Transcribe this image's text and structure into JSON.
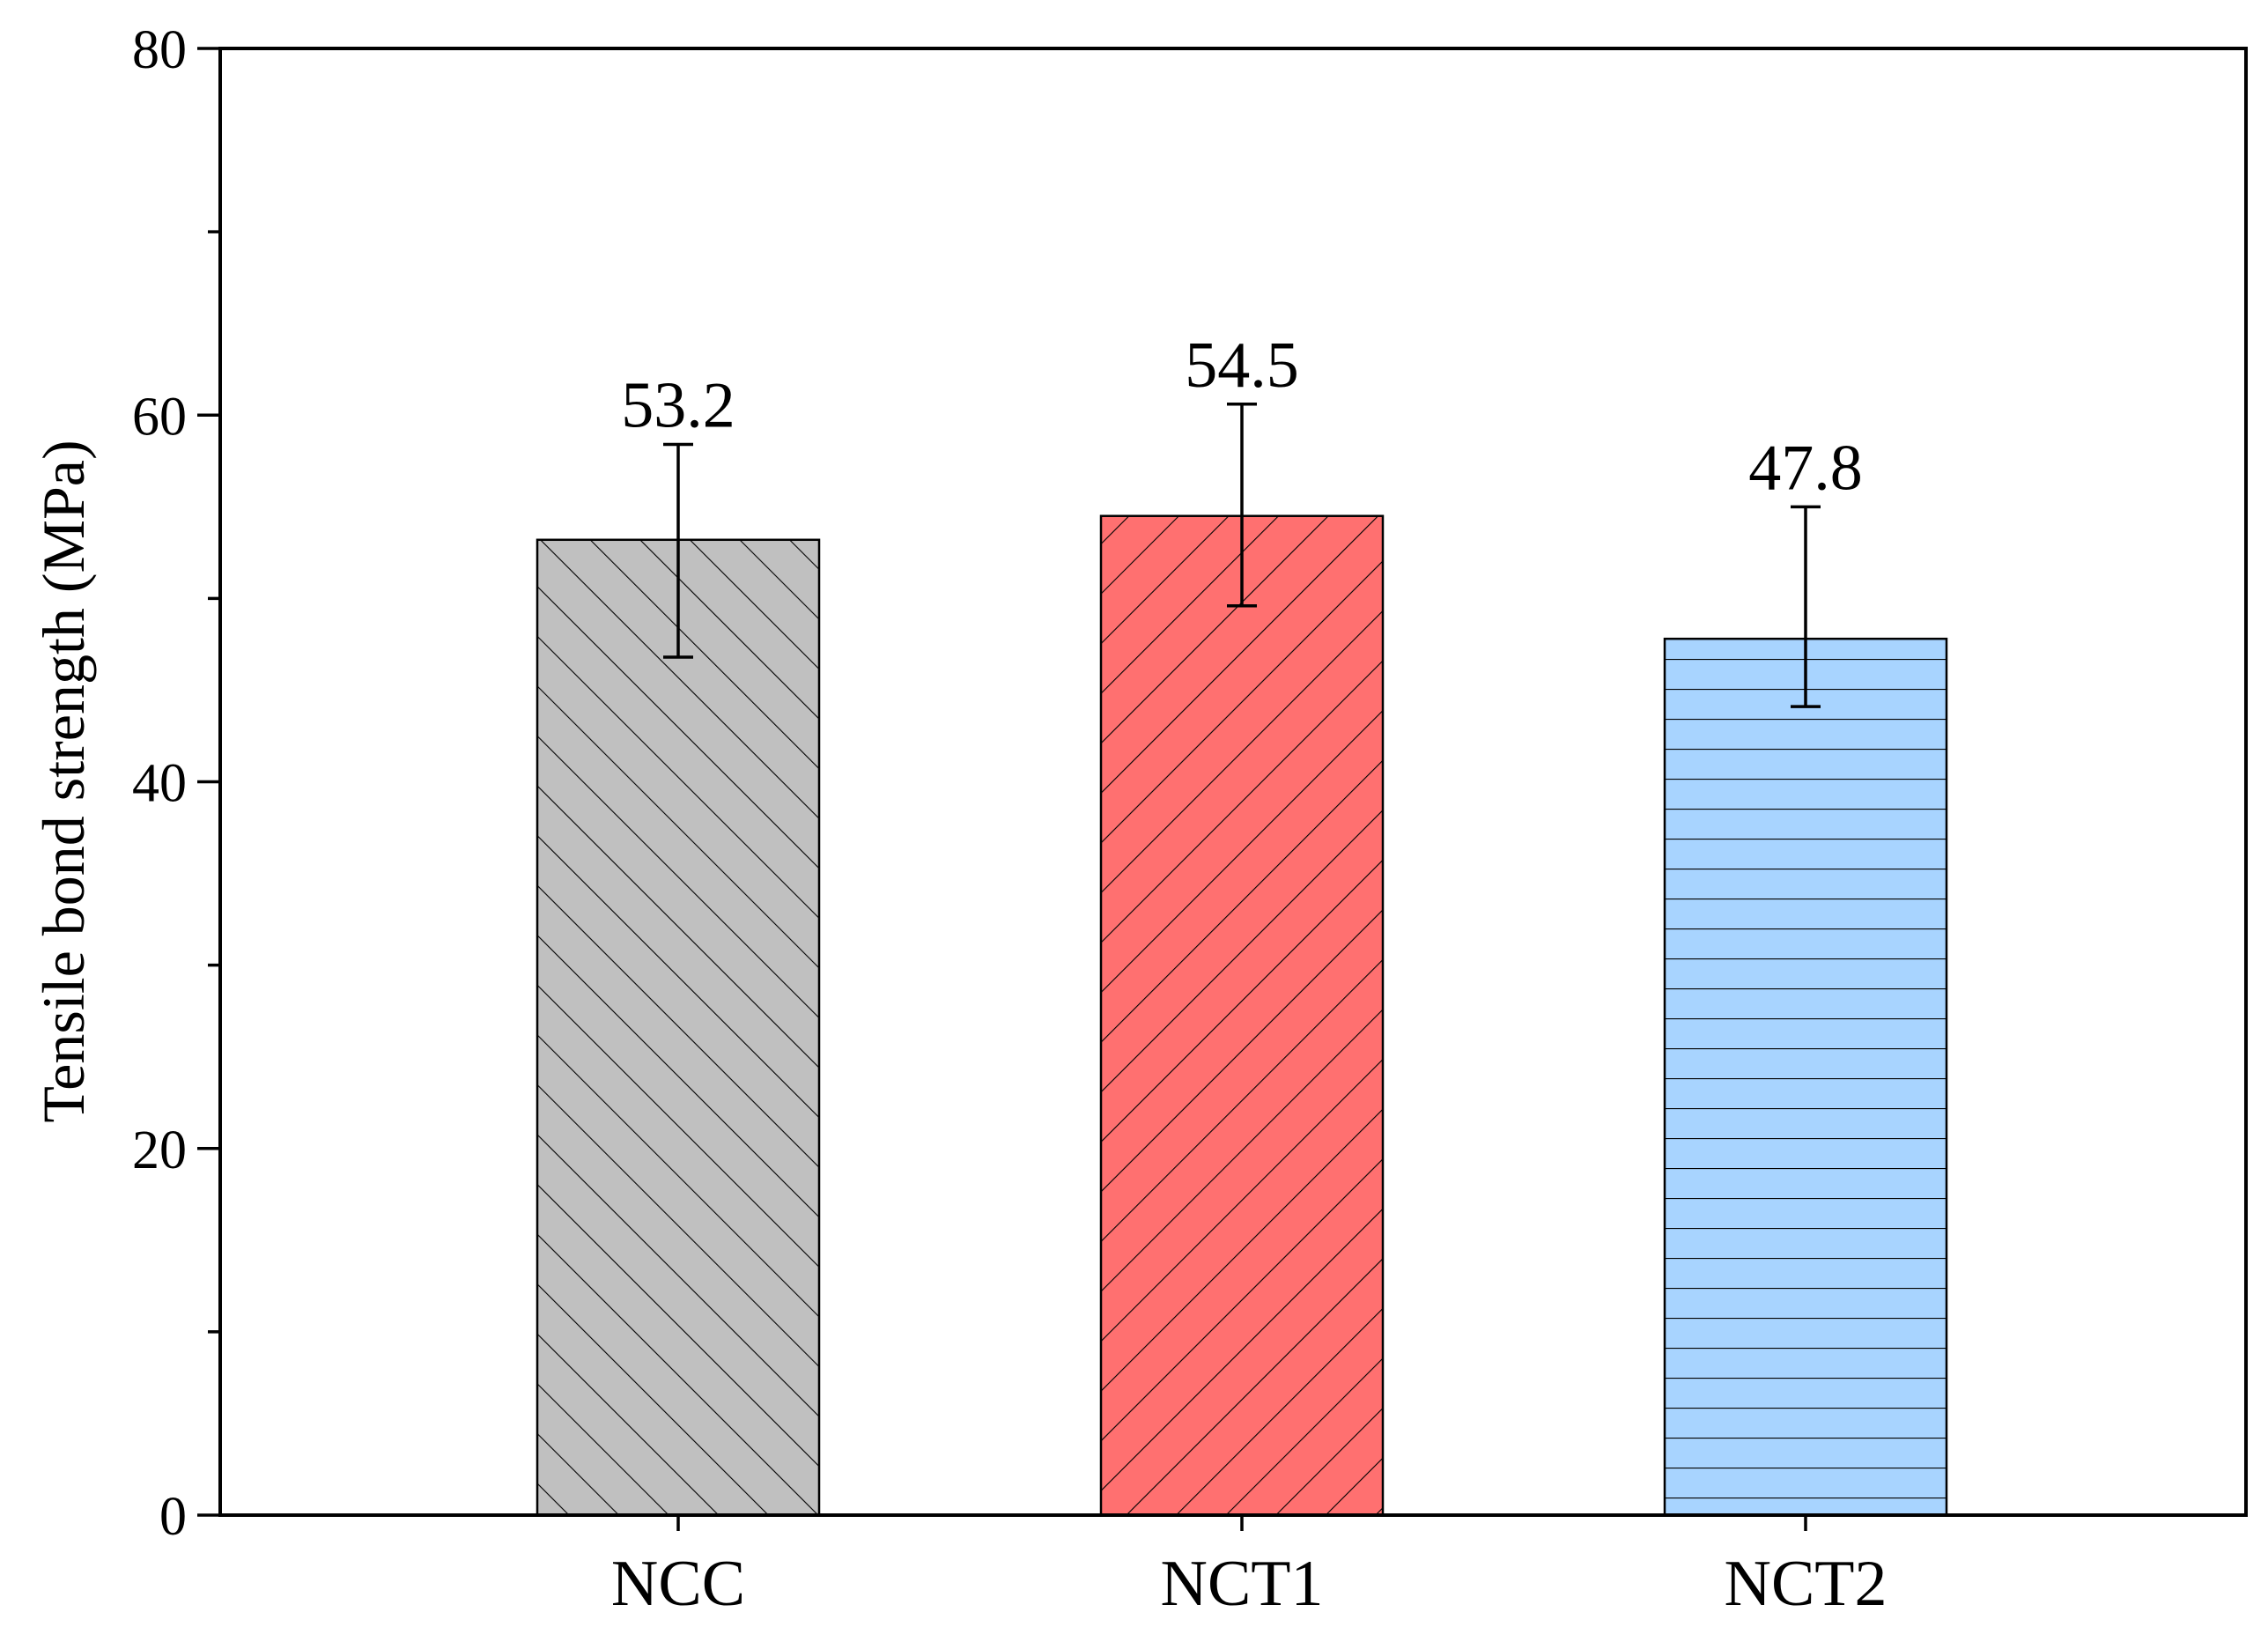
{
  "chart_data": {
    "type": "bar",
    "title": "",
    "xlabel": "",
    "ylabel": "Tensile bond strength (MPa)",
    "ylim": [
      0,
      80
    ],
    "yticks": [
      0,
      20,
      40,
      60,
      80
    ],
    "y_minor_step": 10,
    "grid": false,
    "legend": "none",
    "categories": [
      "NCC",
      "NCT1",
      "NCT2"
    ],
    "values": [
      53.2,
      54.5,
      47.8
    ],
    "value_labels": [
      "53.2",
      "54.5",
      "47.8"
    ],
    "error_bars": [
      {
        "lower": 46.8,
        "upper": 58.4
      },
      {
        "lower": 49.6,
        "upper": 60.6
      },
      {
        "lower": 44.1,
        "upper": 55.0
      }
    ],
    "bar_styles": [
      {
        "fill": "#c0c0c0",
        "hatch": "forward-diagonal"
      },
      {
        "fill": "#ff7070",
        "hatch": "back-diagonal"
      },
      {
        "fill": "#a8d4ff",
        "hatch": "horizontal"
      }
    ]
  }
}
